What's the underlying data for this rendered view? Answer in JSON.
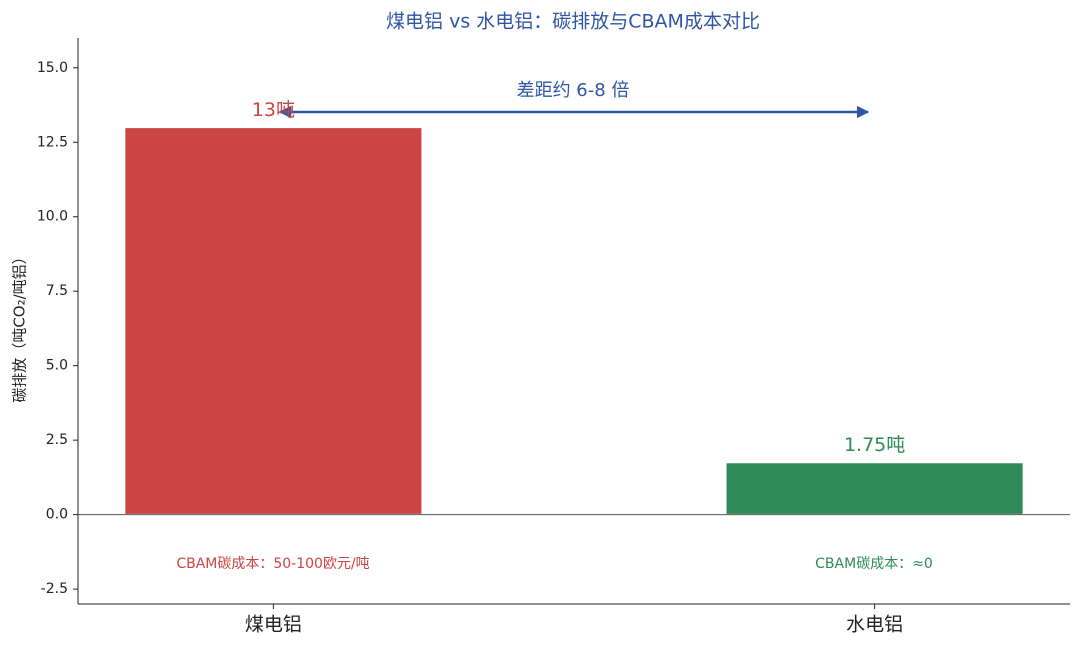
{
  "chart_data": {
    "type": "bar",
    "title": "煤电铝 vs 水电铝：碳排放与CBAM成本对比",
    "y_label": "碳排放（吨CO₂/吨铝）",
    "categories": [
      "煤电铝",
      "水电铝"
    ],
    "values": [
      13,
      1.75
    ],
    "value_labels": [
      "13吨",
      "1.75吨"
    ],
    "colors": [
      "#cc4444",
      "#2e8b57"
    ],
    "annotations": [
      "差距约 6-8 倍",
      "CBAM碳成本：50-100欧元/吨",
      "CBAM碳成本：≈0"
    ],
    "ylim": [
      -3,
      16
    ],
    "yticks": [
      {
        "value": -2.5,
        "label": "-2.5"
      },
      {
        "value": 0,
        "label": "0.0"
      },
      {
        "value": 2.5,
        "label": "2.5"
      },
      {
        "value": 5,
        "label": "5.0"
      },
      {
        "value": 7.5,
        "label": "7.5"
      },
      {
        "value": 10,
        "label": "10.0"
      },
      {
        "value": 12.5,
        "label": "12.5"
      },
      {
        "value": 15,
        "label": "15.0"
      }
    ],
    "grid": false
  }
}
